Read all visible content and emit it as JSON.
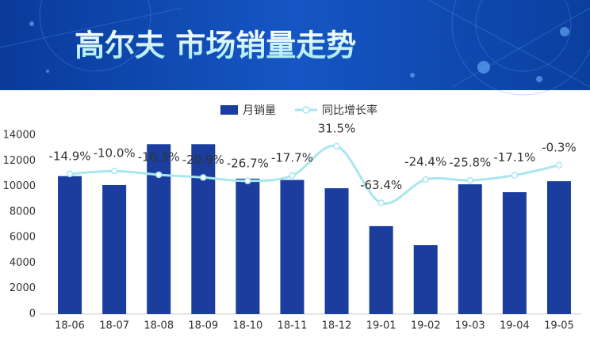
{
  "header": {
    "title": "高尔夫 市场销量走势"
  },
  "chart_data": {
    "type": "bar-line",
    "categories": [
      "18-06",
      "18-07",
      "18-08",
      "18-09",
      "18-10",
      "18-11",
      "18-12",
      "19-01",
      "19-02",
      "19-03",
      "19-04",
      "19-05"
    ],
    "series": [
      {
        "name": "月销量",
        "type": "bar",
        "color": "#1a3d9e",
        "values": [
          10800,
          10100,
          13300,
          13300,
          10600,
          10500,
          9850,
          6880,
          5390,
          10160,
          9540,
          10400
        ]
      },
      {
        "name": "同比增长率",
        "type": "line",
        "axis": "y2",
        "color": "#a8e6f0",
        "values": [
          -14.9,
          -10.0,
          -16.3,
          -20.9,
          -26.7,
          -17.7,
          31.5,
          -63.4,
          -24.4,
          -25.8,
          -17.1,
          -0.3
        ],
        "value_labels": [
          "-14.9%",
          "-10.0%",
          "-16.3%",
          "-20.9%",
          "-26.7%",
          "-17.7%",
          "31.5%",
          "-63.4%",
          "-24.4%",
          "-25.8%",
          "-17.1%",
          "-0.3%"
        ]
      }
    ],
    "ylim": [
      0,
      14000
    ],
    "yticks": [
      0,
      2000,
      4000,
      6000,
      8000,
      10000,
      12000,
      14000
    ],
    "y2lim": [
      -250,
      50
    ],
    "grid": false,
    "legend": "top"
  }
}
